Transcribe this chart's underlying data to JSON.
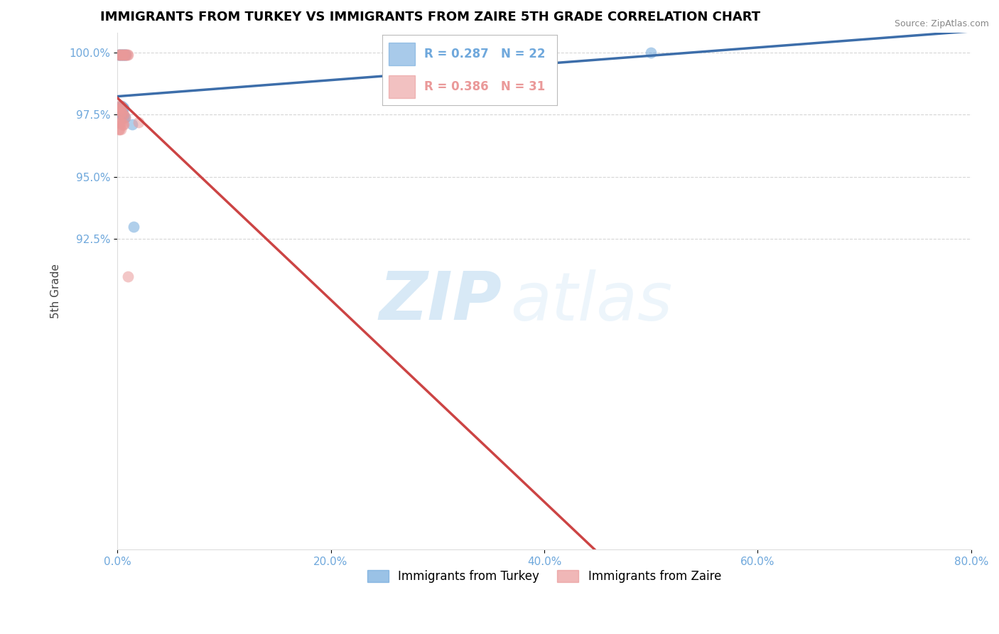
{
  "title": "IMMIGRANTS FROM TURKEY VS IMMIGRANTS FROM ZAIRE 5TH GRADE CORRELATION CHART",
  "source": "Source: ZipAtlas.com",
  "ylabel": "5th Grade",
  "xlim": [
    0.0,
    0.8
  ],
  "ylim": [
    0.8,
    1.008
  ],
  "xticks": [
    0.0,
    0.2,
    0.4,
    0.6,
    0.8
  ],
  "xticklabels": [
    "0.0%",
    "20.0%",
    "40.0%",
    "60.0%",
    "80.0%"
  ],
  "yticks": [
    0.925,
    0.95,
    0.975,
    1.0
  ],
  "yticklabels": [
    "92.5%",
    "95.0%",
    "97.5%",
    "100.0%"
  ],
  "turkey_color": "#6fa8dc",
  "zaire_color": "#ea9999",
  "turkey_line_color": "#3d6eaa",
  "zaire_line_color": "#cc4444",
  "turkey_R": 0.287,
  "turkey_N": 22,
  "zaire_R": 0.386,
  "zaire_N": 31,
  "turkey_x": [
    0.001,
    0.002,
    0.003,
    0.004,
    0.005,
    0.006,
    0.007,
    0.008,
    0.003,
    0.004,
    0.005,
    0.006,
    0.001,
    0.002,
    0.003,
    0.004,
    0.005,
    0.006,
    0.007,
    0.014,
    0.5,
    0.015
  ],
  "turkey_y": [
    0.999,
    0.999,
    0.999,
    0.999,
    0.999,
    0.999,
    0.999,
    0.999,
    0.9785,
    0.9785,
    0.978,
    0.9775,
    0.976,
    0.976,
    0.975,
    0.975,
    0.975,
    0.974,
    0.974,
    0.971,
    1.0,
    0.93
  ],
  "zaire_x": [
    0.001,
    0.002,
    0.003,
    0.004,
    0.005,
    0.006,
    0.007,
    0.008,
    0.009,
    0.01,
    0.002,
    0.003,
    0.004,
    0.001,
    0.002,
    0.003,
    0.004,
    0.005,
    0.006,
    0.007,
    0.001,
    0.002,
    0.003,
    0.004,
    0.005,
    0.006,
    0.001,
    0.002,
    0.003,
    0.02,
    0.01
  ],
  "zaire_y": [
    0.999,
    0.999,
    0.999,
    0.999,
    0.999,
    0.999,
    0.999,
    0.999,
    0.999,
    0.999,
    0.9785,
    0.9785,
    0.978,
    0.977,
    0.977,
    0.976,
    0.976,
    0.975,
    0.975,
    0.974,
    0.972,
    0.972,
    0.972,
    0.971,
    0.971,
    0.971,
    0.969,
    0.969,
    0.969,
    0.972,
    0.91
  ],
  "watermark_zip": "ZIP",
  "watermark_atlas": "atlas",
  "background_color": "#ffffff",
  "grid_color": "#cccccc",
  "tick_color": "#6fa8dc",
  "title_color": "#000000",
  "title_fontsize": 13
}
